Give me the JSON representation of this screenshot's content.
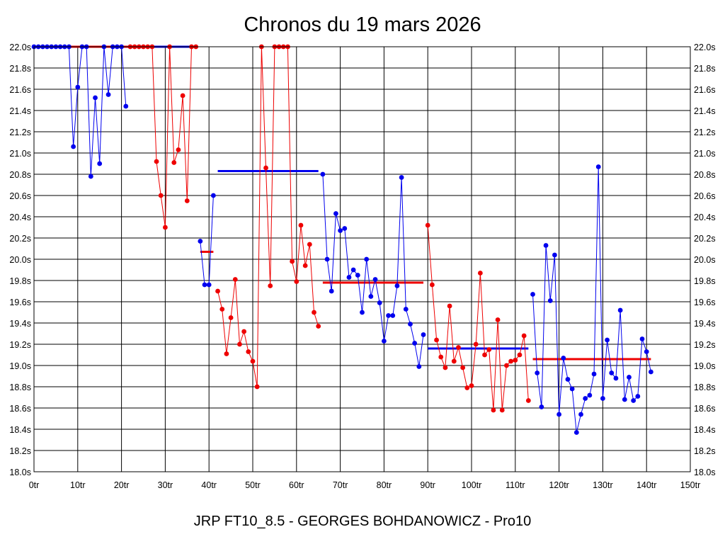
{
  "chart_data": {
    "type": "line",
    "title": "Chronos du 19 mars 2026",
    "footer": "JRP FT10_8.5 - GEORGES BOHDANOWICZ - Pro10",
    "xlim": [
      0,
      150
    ],
    "ylim": [
      18.0,
      22.0
    ],
    "x_ticks": [
      0,
      10,
      20,
      30,
      40,
      50,
      60,
      70,
      80,
      90,
      100,
      110,
      120,
      130,
      140,
      150
    ],
    "x_tick_labels": [
      "0tr",
      "10tr",
      "20tr",
      "30tr",
      "40tr",
      "50tr",
      "60tr",
      "70tr",
      "80tr",
      "90tr",
      "100tr",
      "110tr",
      "120tr",
      "130tr",
      "140tr",
      "150tr"
    ],
    "y_ticks": [
      18.0,
      18.2,
      18.4,
      18.6,
      18.8,
      19.0,
      19.2,
      19.4,
      19.6,
      19.8,
      20.0,
      20.2,
      20.4,
      20.6,
      20.8,
      21.0,
      21.2,
      21.4,
      21.6,
      21.8,
      22.0
    ],
    "y_tick_labels": [
      "18.0s",
      "18.2s",
      "18.4s",
      "18.6s",
      "18.8s",
      "19.0s",
      "19.2s",
      "19.4s",
      "19.6s",
      "19.8s",
      "20.0s",
      "20.2s",
      "20.4s",
      "20.6s",
      "20.8s",
      "21.0s",
      "21.2s",
      "21.4s",
      "21.6s",
      "21.8s",
      "22.0s"
    ],
    "grid": true,
    "series": [
      {
        "color": "#0000ee",
        "x": [
          0,
          1,
          2,
          3,
          4,
          5,
          6,
          7,
          8,
          9,
          10,
          11,
          12,
          13,
          14,
          15,
          16,
          17,
          18,
          19,
          20,
          21
        ],
        "y": [
          22.0,
          22.0,
          22.0,
          22.0,
          22.0,
          22.0,
          22.0,
          22.0,
          22.0,
          21.06,
          21.62,
          22.0,
          22.0,
          20.78,
          21.52,
          20.9,
          22.0,
          21.55,
          22.0,
          22.0,
          22.0,
          21.44
        ]
      },
      {
        "color": "#ee0000",
        "x": [
          22,
          23,
          24,
          25,
          26,
          27,
          28,
          29,
          30,
          31,
          32,
          33,
          34,
          35,
          36,
          37
        ],
        "y": [
          22.0,
          22.0,
          22.0,
          22.0,
          22.0,
          22.0,
          20.92,
          20.6,
          20.3,
          22.0,
          20.91,
          21.03,
          21.54,
          20.55,
          22.0,
          22.0
        ]
      },
      {
        "color": "#0000ee",
        "x": [
          38,
          39,
          40,
          41
        ],
        "y": [
          20.17,
          19.76,
          19.76,
          20.6
        ]
      },
      {
        "color": "#ee0000",
        "x": [
          42,
          43,
          44,
          45,
          46,
          47,
          48,
          49,
          50,
          51,
          52,
          53,
          54,
          55,
          56,
          57,
          58,
          59,
          60,
          61,
          62,
          63,
          64,
          65
        ],
        "y": [
          19.7,
          19.53,
          19.11,
          19.45,
          19.81,
          19.2,
          19.32,
          19.13,
          19.04,
          18.8,
          22.0,
          20.86,
          19.75,
          22.0,
          22.0,
          22.0,
          22.0,
          19.98,
          19.79,
          20.32,
          19.94,
          20.14,
          19.5,
          19.37
        ]
      },
      {
        "color": "#0000ee",
        "x": [
          66,
          67,
          68,
          69,
          70,
          71,
          72,
          73,
          74,
          75,
          76,
          77,
          78,
          79,
          80,
          81,
          82,
          83,
          84,
          85,
          86,
          87,
          88,
          89
        ],
        "y": [
          20.8,
          20.0,
          19.7,
          20.43,
          20.27,
          20.29,
          19.83,
          19.9,
          19.85,
          19.5,
          20.0,
          19.65,
          19.81,
          19.59,
          19.23,
          19.47,
          19.47,
          19.75,
          20.77,
          19.53,
          19.39,
          19.21,
          18.99,
          19.29
        ]
      },
      {
        "color": "#ee0000",
        "x": [
          90,
          91,
          92,
          93,
          94,
          95,
          96,
          97,
          98,
          99,
          100,
          101,
          102,
          103,
          104,
          105,
          106,
          107,
          108,
          109,
          110,
          111,
          112,
          113
        ],
        "y": [
          20.32,
          19.76,
          19.24,
          19.08,
          18.98,
          19.56,
          19.04,
          19.17,
          18.98,
          18.79,
          18.81,
          19.2,
          19.87,
          19.1,
          19.15,
          18.58,
          19.43,
          18.58,
          19.0,
          19.04,
          19.05,
          19.1,
          19.28,
          18.67
        ]
      },
      {
        "color": "#0000ee",
        "x": [
          114,
          115,
          116,
          117,
          118,
          119,
          120,
          121,
          122,
          123,
          124,
          125,
          126,
          127,
          128,
          129,
          130,
          131,
          132,
          133,
          134,
          135,
          136,
          137,
          138,
          139,
          140,
          141
        ],
        "y": [
          19.67,
          18.93,
          18.61,
          20.13,
          19.61,
          20.04,
          18.54,
          19.07,
          18.87,
          18.78,
          18.37,
          18.54,
          18.69,
          18.72,
          18.92,
          20.87,
          18.69,
          19.24,
          18.93,
          18.88,
          19.52,
          18.68,
          18.89,
          18.67,
          18.71,
          19.25,
          19.13,
          18.94
        ]
      }
    ],
    "averages": [
      {
        "color": "#0000ee",
        "x": [
          8,
          36
        ],
        "y": 22.0
      },
      {
        "color": "#ee0000",
        "x": [
          8,
          22
        ],
        "y": 22.0
      },
      {
        "color": "#ee0000",
        "x": [
          38,
          41
        ],
        "y": 20.07
      },
      {
        "color": "#0000ee",
        "x": [
          42,
          65
        ],
        "y": 20.83
      },
      {
        "color": "#ee0000",
        "x": [
          66,
          89
        ],
        "y": 19.78
      },
      {
        "color": "#0000ee",
        "x": [
          90,
          113
        ],
        "y": 19.16
      },
      {
        "color": "#ee0000",
        "x": [
          114,
          141
        ],
        "y": 19.06
      }
    ]
  }
}
